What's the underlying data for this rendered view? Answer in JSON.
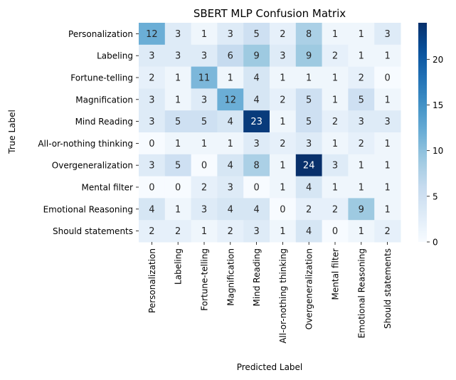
{
  "chart_data": {
    "type": "heatmap",
    "title": "SBERT MLP Confusion Matrix",
    "xlabel": "Predicted Label",
    "ylabel": "True Label",
    "categories": [
      "Personalization",
      "Labeling",
      "Fortune-telling",
      "Magnification",
      "Mind Reading",
      "All-or-nothing thinking",
      "Overgeneralization",
      "Mental filter",
      "Emotional Reasoning",
      "Should statements"
    ],
    "values": [
      [
        12,
        3,
        1,
        3,
        5,
        2,
        8,
        1,
        1,
        3
      ],
      [
        3,
        3,
        3,
        6,
        9,
        3,
        9,
        2,
        1,
        1
      ],
      [
        2,
        1,
        11,
        1,
        4,
        1,
        1,
        1,
        2,
        0
      ],
      [
        3,
        1,
        3,
        12,
        4,
        2,
        5,
        1,
        5,
        1
      ],
      [
        3,
        5,
        5,
        4,
        23,
        1,
        5,
        2,
        3,
        3
      ],
      [
        0,
        1,
        1,
        1,
        3,
        2,
        3,
        1,
        2,
        1
      ],
      [
        3,
        5,
        0,
        4,
        8,
        1,
        24,
        3,
        1,
        1
      ],
      [
        0,
        0,
        2,
        3,
        0,
        1,
        4,
        1,
        1,
        1
      ],
      [
        4,
        1,
        3,
        4,
        4,
        0,
        2,
        2,
        9,
        1
      ],
      [
        2,
        2,
        1,
        2,
        3,
        1,
        4,
        0,
        1,
        2
      ]
    ],
    "colormap": "Blues",
    "vmin": 0,
    "vmax": 24,
    "colorbar_ticks": [
      0,
      5,
      10,
      15,
      20
    ]
  }
}
